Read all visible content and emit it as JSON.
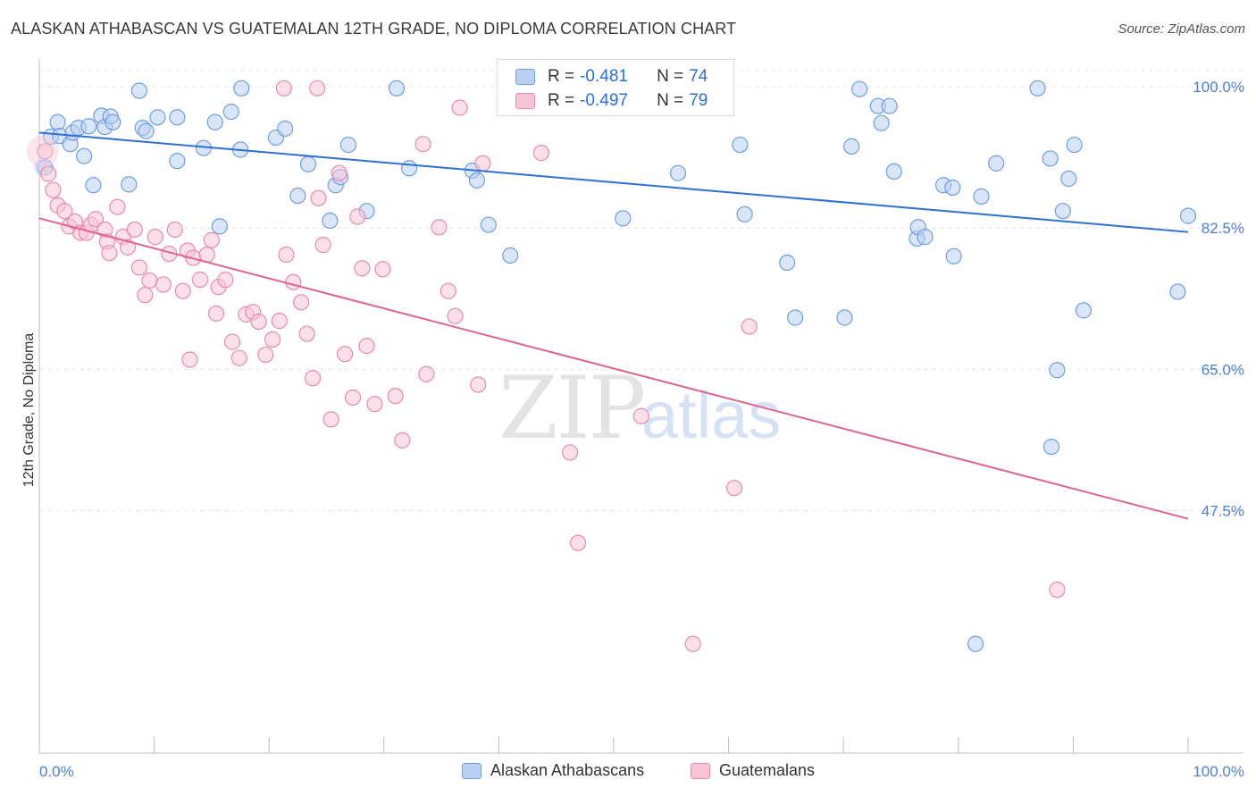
{
  "header": {
    "title": "ALASKAN ATHABASCAN VS GUATEMALAN 12TH GRADE, NO DIPLOMA CORRELATION CHART",
    "source": "Source: ZipAtlas.com"
  },
  "legend": {
    "series1": {
      "r_label": "R =",
      "r_value": "-0.481",
      "n_label": "N =",
      "n_value": "74"
    },
    "series2": {
      "r_label": "R =",
      "r_value": "-0.497",
      "n_label": "N =",
      "n_value": "79"
    }
  },
  "bottom_legend": {
    "series1": "Alaskan Athabascans",
    "series2": "Guatemalans"
  },
  "colors": {
    "blue_fill": "#b9d0f2",
    "blue_stroke": "#6f9ee0",
    "blue_line": "#2e6fd6",
    "pink_fill": "#f7c6d6",
    "pink_stroke": "#e98aaa",
    "pink_line": "#e0638f",
    "tick_text": "#4a7fd4"
  },
  "chart_data": {
    "type": "scatter",
    "title": "ALASKAN ATHABASCAN VS GUATEMALAN 12TH GRADE, NO DIPLOMA CORRELATION CHART",
    "xlabel": "",
    "ylabel": "12th Grade, No Diploma",
    "xlim": [
      0,
      100
    ],
    "ylim": [
      29,
      103
    ],
    "x_tick_labels": [
      {
        "value": 0,
        "label": "0.0%"
      },
      {
        "value": 100,
        "label": "100.0%"
      }
    ],
    "y_ticks": [
      {
        "value": 100,
        "label": "100.0%"
      },
      {
        "value": 82.5,
        "label": "82.5%"
      },
      {
        "value": 65,
        "label": "65.0%"
      },
      {
        "value": 47.5,
        "label": "47.5%"
      }
    ],
    "grid": true,
    "legend_position": "top-center",
    "watermark": "ZIPatlas",
    "series": [
      {
        "name": "Alaskan Athabascans",
        "color": "#6f9ee0",
        "trend": {
          "x": [
            0,
            100
          ],
          "y": [
            94.3,
            82.0
          ]
        },
        "points": [
          [
            0.5,
            90.0
          ],
          [
            1.0,
            93.8
          ],
          [
            1.6,
            95.6
          ],
          [
            1.8,
            93.9
          ],
          [
            2.7,
            92.9
          ],
          [
            2.9,
            94.3
          ],
          [
            3.4,
            94.9
          ],
          [
            3.9,
            91.4
          ],
          [
            4.3,
            95.1
          ],
          [
            4.7,
            87.8
          ],
          [
            5.4,
            96.4
          ],
          [
            5.7,
            95.0
          ],
          [
            6.2,
            96.3
          ],
          [
            6.4,
            95.6
          ],
          [
            7.8,
            87.9
          ],
          [
            8.7,
            99.5
          ],
          [
            9.0,
            94.9
          ],
          [
            9.3,
            94.5
          ],
          [
            10.3,
            96.2
          ],
          [
            12.0,
            96.2
          ],
          [
            12.0,
            90.8
          ],
          [
            14.3,
            92.4
          ],
          [
            15.3,
            95.6
          ],
          [
            15.7,
            82.7
          ],
          [
            16.7,
            96.9
          ],
          [
            17.5,
            92.2
          ],
          [
            17.6,
            99.8
          ],
          [
            20.6,
            93.7
          ],
          [
            21.4,
            94.8
          ],
          [
            22.5,
            86.5
          ],
          [
            23.4,
            90.4
          ],
          [
            25.3,
            83.4
          ],
          [
            25.8,
            87.8
          ],
          [
            26.2,
            88.8
          ],
          [
            26.9,
            92.8
          ],
          [
            28.5,
            84.6
          ],
          [
            31.1,
            99.8
          ],
          [
            32.2,
            89.9
          ],
          [
            37.7,
            89.6
          ],
          [
            38.1,
            88.4
          ],
          [
            39.1,
            82.9
          ],
          [
            41.0,
            79.1
          ],
          [
            50.8,
            83.7
          ],
          [
            55.6,
            89.3
          ],
          [
            61.0,
            92.8
          ],
          [
            61.4,
            84.2
          ],
          [
            65.1,
            78.2
          ],
          [
            65.8,
            71.4
          ],
          [
            70.1,
            71.4
          ],
          [
            70.7,
            92.6
          ],
          [
            71.4,
            99.7
          ],
          [
            73.0,
            97.6
          ],
          [
            73.3,
            95.5
          ],
          [
            74.0,
            97.6
          ],
          [
            74.4,
            89.5
          ],
          [
            76.4,
            81.2
          ],
          [
            76.5,
            82.6
          ],
          [
            77.1,
            81.4
          ],
          [
            78.7,
            87.8
          ],
          [
            79.5,
            87.5
          ],
          [
            79.6,
            79.0
          ],
          [
            82.0,
            86.4
          ],
          [
            83.3,
            90.5
          ],
          [
            86.9,
            99.8
          ],
          [
            88.0,
            91.1
          ],
          [
            88.1,
            55.4
          ],
          [
            88.6,
            64.9
          ],
          [
            89.1,
            84.6
          ],
          [
            89.6,
            88.6
          ],
          [
            90.1,
            92.8
          ],
          [
            90.9,
            72.3
          ],
          [
            99.1,
            74.6
          ],
          [
            100.0,
            84.0
          ],
          [
            81.5,
            31.0
          ]
        ]
      },
      {
        "name": "Guatemalans",
        "color": "#e98aaa",
        "trend": {
          "x": [
            0,
            100
          ],
          "y": [
            83.7,
            46.5
          ]
        },
        "points": [
          [
            0.5,
            92.0
          ],
          [
            0.8,
            89.2
          ],
          [
            1.2,
            87.2
          ],
          [
            1.6,
            85.3
          ],
          [
            2.2,
            84.6
          ],
          [
            2.6,
            82.7
          ],
          [
            3.1,
            83.3
          ],
          [
            3.6,
            81.9
          ],
          [
            4.1,
            81.9
          ],
          [
            4.5,
            82.9
          ],
          [
            4.9,
            83.6
          ],
          [
            5.7,
            82.3
          ],
          [
            5.9,
            80.8
          ],
          [
            6.1,
            79.4
          ],
          [
            6.8,
            85.1
          ],
          [
            7.3,
            81.4
          ],
          [
            7.7,
            80.1
          ],
          [
            8.3,
            82.3
          ],
          [
            8.7,
            77.6
          ],
          [
            9.2,
            74.2
          ],
          [
            9.6,
            76.0
          ],
          [
            10.1,
            81.4
          ],
          [
            10.8,
            75.5
          ],
          [
            11.3,
            79.3
          ],
          [
            11.8,
            82.3
          ],
          [
            12.5,
            74.7
          ],
          [
            12.9,
            79.7
          ],
          [
            13.4,
            78.8
          ],
          [
            14.0,
            76.1
          ],
          [
            14.6,
            79.2
          ],
          [
            15.0,
            81.0
          ],
          [
            15.6,
            75.2
          ],
          [
            16.2,
            76.1
          ],
          [
            16.8,
            68.4
          ],
          [
            17.4,
            66.4
          ],
          [
            18.0,
            71.8
          ],
          [
            18.6,
            72.1
          ],
          [
            19.1,
            70.9
          ],
          [
            19.7,
            66.8
          ],
          [
            20.3,
            68.7
          ],
          [
            20.9,
            71.0
          ],
          [
            21.5,
            79.2
          ],
          [
            22.1,
            75.8
          ],
          [
            22.8,
            73.3
          ],
          [
            23.3,
            69.4
          ],
          [
            23.8,
            63.9
          ],
          [
            24.3,
            86.2
          ],
          [
            24.7,
            80.4
          ],
          [
            25.4,
            58.8
          ],
          [
            26.1,
            89.3
          ],
          [
            26.6,
            66.9
          ],
          [
            27.3,
            61.5
          ],
          [
            27.7,
            83.9
          ],
          [
            28.1,
            77.5
          ],
          [
            28.5,
            67.9
          ],
          [
            29.2,
            60.7
          ],
          [
            29.9,
            77.4
          ],
          [
            31.0,
            61.7
          ],
          [
            31.6,
            56.2
          ],
          [
            33.4,
            92.9
          ],
          [
            33.7,
            64.4
          ],
          [
            34.8,
            82.6
          ],
          [
            35.6,
            74.7
          ],
          [
            36.2,
            71.6
          ],
          [
            36.6,
            97.4
          ],
          [
            38.2,
            63.1
          ],
          [
            38.6,
            90.5
          ],
          [
            43.7,
            91.8
          ],
          [
            46.2,
            54.7
          ],
          [
            46.9,
            43.5
          ],
          [
            52.4,
            59.2
          ],
          [
            56.9,
            31.0
          ],
          [
            60.5,
            50.3
          ],
          [
            61.8,
            70.3
          ],
          [
            88.6,
            37.7
          ],
          [
            21.3,
            99.8
          ],
          [
            24.2,
            99.8
          ],
          [
            15.4,
            71.9
          ],
          [
            13.1,
            66.2
          ]
        ]
      }
    ]
  }
}
